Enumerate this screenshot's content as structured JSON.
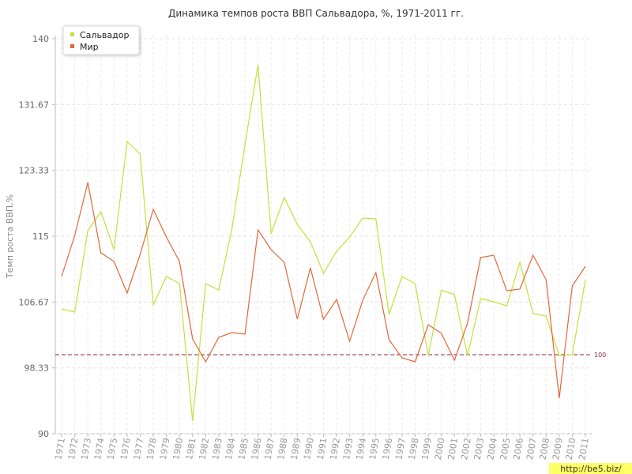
{
  "chart_data": {
    "type": "line",
    "title": "Динамика темпов роста ВВП Сальвадора, %, 1971-2011 гг.",
    "y_label": "Темп роста ВВП,%",
    "categories": [
      "1971",
      "1972",
      "1973",
      "1974",
      "1975",
      "1976",
      "1977",
      "1978",
      "1979",
      "1980",
      "1981",
      "1982",
      "1983",
      "1984",
      "1985",
      "1986",
      "1987",
      "1988",
      "1989",
      "1990",
      "1991",
      "1992",
      "1993",
      "1994",
      "1995",
      "1996",
      "1997",
      "1998",
      "1999",
      "2000",
      "2001",
      "2002",
      "2003",
      "2004",
      "2005",
      "2006",
      "2007",
      "2008",
      "2009",
      "2010",
      "2011"
    ],
    "series": [
      {
        "name": "Сальвадор",
        "color": "#c5e03a",
        "values": [
          105.8,
          105.4,
          115.7,
          118.1,
          113.3,
          127.0,
          125.4,
          106.3,
          109.9,
          109.0,
          91.6,
          109.0,
          108.2,
          115.9,
          126.6,
          136.7,
          115.3,
          119.9,
          116.5,
          114.3,
          110.3,
          113.1,
          114.9,
          117.3,
          117.2,
          105.1,
          109.9,
          109.0,
          99.9,
          108.2,
          107.6,
          99.9,
          107.1,
          106.7,
          106.2,
          111.7,
          105.2,
          104.9,
          99.9,
          100.0,
          109.5
        ]
      },
      {
        "name": "Мир",
        "color": "#e0683a",
        "values": [
          109.9,
          115.1,
          121.8,
          112.9,
          111.8,
          107.8,
          112.7,
          118.4,
          114.9,
          111.8,
          102.0,
          99.1,
          102.2,
          102.8,
          102.6,
          115.8,
          113.3,
          111.7,
          104.5,
          111.0,
          104.5,
          107.0,
          101.7,
          106.9,
          110.4,
          101.9,
          99.6,
          99.1,
          103.8,
          102.7,
          99.3,
          104.0,
          112.3,
          112.6,
          108.1,
          108.3,
          112.6,
          109.5,
          94.5,
          108.7,
          111.2
        ]
      }
    ],
    "ylim": [
      90,
      140
    ],
    "yticks": [
      90,
      98.33,
      106.67,
      115,
      123.33,
      131.67,
      140
    ],
    "grid": true,
    "legend": "top-left",
    "reference_line": 100,
    "reference_color": "#8b2a3a"
  },
  "watermark": "http://be5.biz/"
}
